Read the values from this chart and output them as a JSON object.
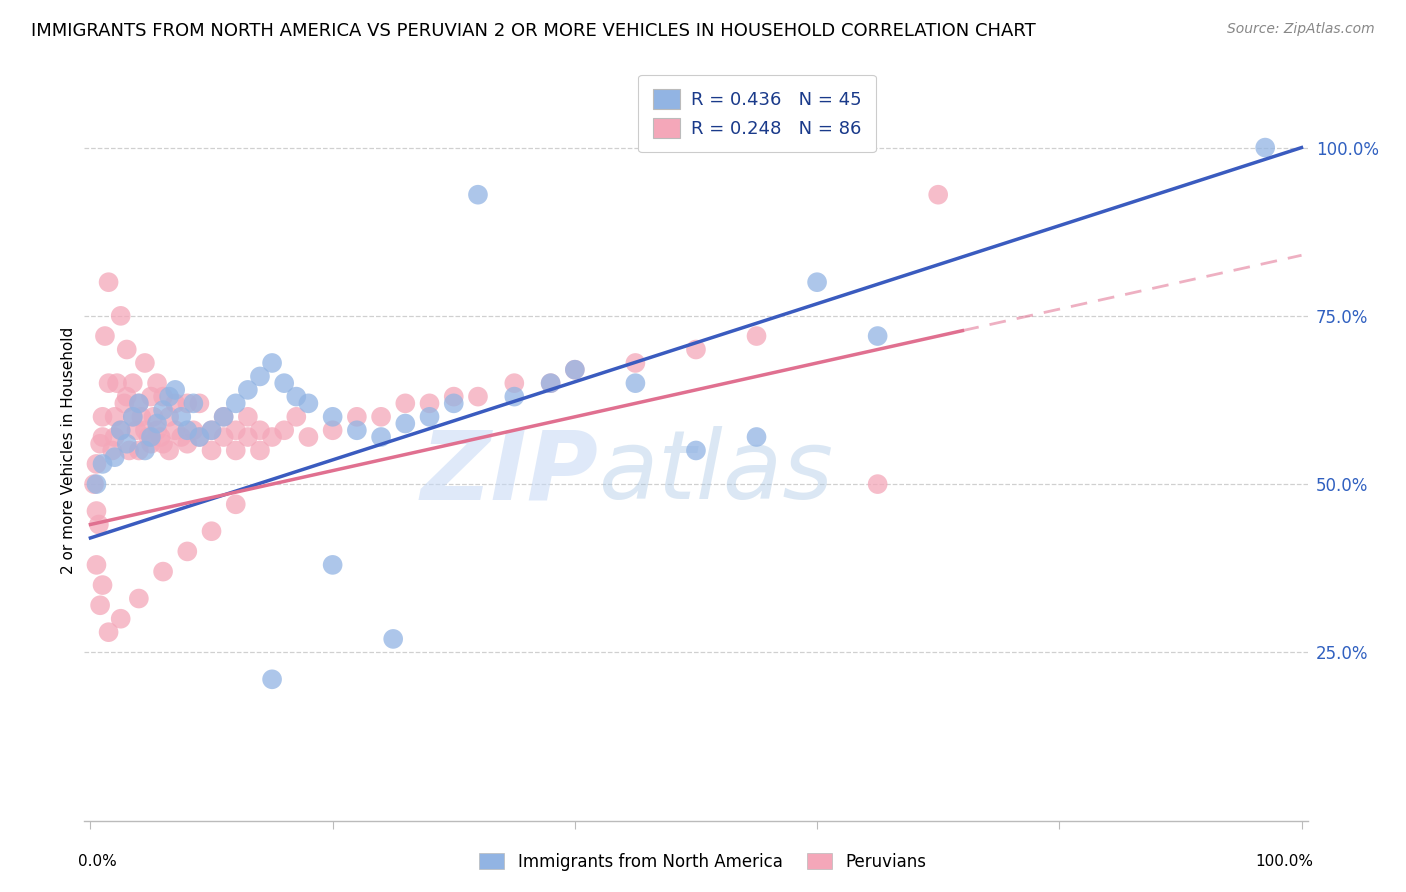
{
  "title": "IMMIGRANTS FROM NORTH AMERICA VS PERUVIAN 2 OR MORE VEHICLES IN HOUSEHOLD CORRELATION CHART",
  "source": "Source: ZipAtlas.com",
  "ylabel": "2 or more Vehicles in Household",
  "ytick_vals": [
    1.0,
    0.75,
    0.5,
    0.25
  ],
  "ytick_labels": [
    "100.0%",
    "75.0%",
    "50.0%",
    "25.0%"
  ],
  "xlim": [
    0.0,
    1.0
  ],
  "ylim": [
    0.0,
    1.1
  ],
  "blue_R": 0.436,
  "blue_N": 45,
  "pink_R": 0.248,
  "pink_N": 86,
  "blue_color": "#92b4e3",
  "pink_color": "#f4a7b9",
  "blue_line_color": "#3a5bbf",
  "pink_line_color": "#e07090",
  "legend_blue_label": "R = 0.436   N = 45",
  "legend_pink_label": "R = 0.248   N = 86",
  "blue_line_intercept": 0.42,
  "blue_line_slope": 0.58,
  "pink_line_intercept": 0.44,
  "pink_line_slope": 0.4,
  "blue_scatter_x": [
    0.97,
    0.005,
    0.01,
    0.02,
    0.025,
    0.03,
    0.035,
    0.04,
    0.045,
    0.05,
    0.055,
    0.06,
    0.065,
    0.07,
    0.075,
    0.08,
    0.085,
    0.09,
    0.1,
    0.11,
    0.12,
    0.13,
    0.14,
    0.15,
    0.16,
    0.17,
    0.18,
    0.2,
    0.22,
    0.24,
    0.26,
    0.28,
    0.3,
    0.32,
    0.35,
    0.38,
    0.4,
    0.45,
    0.5,
    0.55,
    0.6,
    0.65,
    0.2,
    0.25,
    0.15
  ],
  "blue_scatter_y": [
    1.0,
    0.5,
    0.53,
    0.54,
    0.58,
    0.56,
    0.6,
    0.62,
    0.55,
    0.57,
    0.59,
    0.61,
    0.63,
    0.64,
    0.6,
    0.58,
    0.62,
    0.57,
    0.58,
    0.6,
    0.62,
    0.64,
    0.66,
    0.68,
    0.65,
    0.63,
    0.62,
    0.6,
    0.58,
    0.57,
    0.59,
    0.6,
    0.62,
    0.93,
    0.63,
    0.65,
    0.67,
    0.65,
    0.55,
    0.57,
    0.8,
    0.72,
    0.38,
    0.27,
    0.21
  ],
  "pink_scatter_x": [
    0.003,
    0.005,
    0.008,
    0.01,
    0.01,
    0.012,
    0.015,
    0.015,
    0.018,
    0.02,
    0.02,
    0.022,
    0.025,
    0.025,
    0.028,
    0.03,
    0.03,
    0.032,
    0.035,
    0.035,
    0.038,
    0.04,
    0.04,
    0.042,
    0.045,
    0.045,
    0.048,
    0.05,
    0.05,
    0.052,
    0.055,
    0.055,
    0.058,
    0.06,
    0.06,
    0.065,
    0.065,
    0.07,
    0.07,
    0.075,
    0.08,
    0.08,
    0.085,
    0.09,
    0.09,
    0.1,
    0.1,
    0.11,
    0.11,
    0.12,
    0.12,
    0.13,
    0.13,
    0.14,
    0.14,
    0.15,
    0.16,
    0.17,
    0.18,
    0.2,
    0.22,
    0.24,
    0.26,
    0.28,
    0.3,
    0.32,
    0.35,
    0.38,
    0.4,
    0.45,
    0.5,
    0.55,
    0.1,
    0.12,
    0.08,
    0.06,
    0.04,
    0.025,
    0.015,
    0.01,
    0.008,
    0.005,
    0.7,
    0.65,
    0.005,
    0.007
  ],
  "pink_scatter_y": [
    0.5,
    0.53,
    0.56,
    0.57,
    0.6,
    0.72,
    0.65,
    0.8,
    0.55,
    0.57,
    0.6,
    0.65,
    0.58,
    0.75,
    0.62,
    0.63,
    0.7,
    0.55,
    0.6,
    0.65,
    0.58,
    0.55,
    0.62,
    0.6,
    0.58,
    0.68,
    0.57,
    0.56,
    0.63,
    0.6,
    0.58,
    0.65,
    0.57,
    0.56,
    0.63,
    0.6,
    0.55,
    0.58,
    0.62,
    0.57,
    0.56,
    0.62,
    0.58,
    0.57,
    0.62,
    0.58,
    0.55,
    0.57,
    0.6,
    0.58,
    0.55,
    0.57,
    0.6,
    0.58,
    0.55,
    0.57,
    0.58,
    0.6,
    0.57,
    0.58,
    0.6,
    0.6,
    0.62,
    0.62,
    0.63,
    0.63,
    0.65,
    0.65,
    0.67,
    0.68,
    0.7,
    0.72,
    0.43,
    0.47,
    0.4,
    0.37,
    0.33,
    0.3,
    0.28,
    0.35,
    0.32,
    0.38,
    0.93,
    0.5,
    0.46,
    0.44
  ]
}
